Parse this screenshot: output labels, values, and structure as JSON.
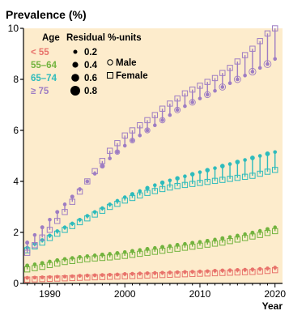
{
  "chart_data": {
    "type": "scatter",
    "title": "Prevalence (%)",
    "xlabel": "Year",
    "ylabel": "",
    "xlim": [
      1986.5,
      2021
    ],
    "ylim": [
      0,
      10
    ],
    "xticks": [
      1990,
      2000,
      2010,
      2020
    ],
    "yticks": [
      0,
      2,
      4,
      6,
      8,
      10
    ],
    "x": [
      1987,
      1988,
      1989,
      1990,
      1991,
      1992,
      1993,
      1994,
      1995,
      1996,
      1997,
      1998,
      1999,
      2000,
      2001,
      2002,
      2003,
      2004,
      2005,
      2006,
      2007,
      2008,
      2009,
      2010,
      2011,
      2012,
      2013,
      2014,
      2015,
      2016,
      2017,
      2018,
      2019,
      2020
    ],
    "grid": false,
    "background_color": "#fdeccc",
    "legend": {
      "position": "top-left",
      "age_title": "Age",
      "residual_title": "Residual %-units",
      "sizes": [
        0.2,
        0.4,
        0.6,
        0.8
      ],
      "male_label": "Male",
      "female_label": "Female"
    },
    "series": [
      {
        "name": "< 55",
        "color": "#e8736b",
        "female": [
          0.15,
          0.16,
          0.17,
          0.18,
          0.19,
          0.2,
          0.21,
          0.22,
          0.23,
          0.24,
          0.25,
          0.26,
          0.27,
          0.28,
          0.29,
          0.3,
          0.31,
          0.32,
          0.33,
          0.34,
          0.35,
          0.36,
          0.37,
          0.38,
          0.39,
          0.4,
          0.41,
          0.42,
          0.43,
          0.44,
          0.45,
          0.47,
          0.49,
          0.52
        ],
        "male": [
          0.22,
          0.23,
          0.24,
          0.25,
          0.26,
          0.27,
          0.28,
          0.3,
          0.31,
          0.32,
          0.33,
          0.34,
          0.35,
          0.37,
          0.38,
          0.39,
          0.4,
          0.41,
          0.42,
          0.43,
          0.44,
          0.45,
          0.46,
          0.47,
          0.48,
          0.5,
          0.51,
          0.52,
          0.53,
          0.54,
          0.55,
          0.57,
          0.59,
          0.62
        ]
      },
      {
        "name": "55–64",
        "color": "#72b33e",
        "female": [
          0.55,
          0.6,
          0.65,
          0.72,
          0.78,
          0.84,
          0.88,
          0.92,
          0.95,
          0.98,
          1.0,
          1.02,
          1.05,
          1.08,
          1.12,
          1.16,
          1.2,
          1.24,
          1.28,
          1.32,
          1.36,
          1.4,
          1.44,
          1.48,
          1.52,
          1.56,
          1.6,
          1.66,
          1.72,
          1.78,
          1.84,
          1.9,
          1.98,
          2.05
        ],
        "male": [
          0.7,
          0.75,
          0.8,
          0.86,
          0.91,
          0.96,
          1.0,
          1.04,
          1.07,
          1.1,
          1.13,
          1.16,
          1.19,
          1.23,
          1.27,
          1.31,
          1.35,
          1.39,
          1.43,
          1.47,
          1.51,
          1.55,
          1.59,
          1.63,
          1.67,
          1.72,
          1.77,
          1.82,
          1.87,
          1.93,
          1.99,
          2.06,
          2.13,
          2.2
        ]
      },
      {
        "name": "65–74",
        "color": "#2dbbbc",
        "female": [
          1.3,
          1.45,
          1.6,
          1.78,
          1.95,
          2.1,
          2.25,
          2.4,
          2.55,
          2.7,
          2.85,
          3.0,
          3.12,
          3.25,
          3.35,
          3.45,
          3.55,
          3.62,
          3.7,
          3.76,
          3.82,
          3.86,
          3.9,
          3.94,
          3.98,
          4.02,
          4.06,
          4.1,
          4.14,
          4.18,
          4.22,
          4.3,
          4.38,
          4.45
        ],
        "male": [
          1.4,
          1.55,
          1.7,
          1.88,
          2.05,
          2.2,
          2.35,
          2.5,
          2.65,
          2.8,
          2.95,
          3.1,
          3.24,
          3.38,
          3.5,
          3.62,
          3.74,
          3.85,
          3.95,
          4.04,
          4.12,
          4.2,
          4.28,
          4.36,
          4.44,
          4.52,
          4.6,
          4.68,
          4.76,
          4.84,
          4.92,
          5.0,
          5.08,
          5.15
        ]
      },
      {
        "name": "≥ 75",
        "color": "#9e7dc3",
        "female": [
          1.2,
          1.5,
          1.8,
          2.1,
          2.45,
          2.8,
          3.2,
          3.6,
          4.0,
          4.4,
          4.8,
          5.2,
          5.5,
          5.8,
          6.0,
          6.2,
          6.4,
          6.6,
          6.85,
          7.05,
          7.25,
          7.45,
          7.6,
          7.75,
          7.9,
          8.05,
          8.25,
          8.45,
          8.7,
          8.95,
          9.2,
          9.5,
          9.8,
          10.0
        ],
        "male": [
          1.6,
          1.9,
          2.2,
          2.5,
          2.8,
          3.1,
          3.4,
          3.7,
          4.0,
          4.3,
          4.6,
          4.9,
          5.15,
          5.4,
          5.6,
          5.8,
          6.0,
          6.2,
          6.4,
          6.6,
          6.8,
          6.95,
          7.1,
          7.25,
          7.4,
          7.55,
          7.7,
          7.85,
          8.0,
          8.15,
          8.3,
          8.45,
          8.6,
          8.8
        ]
      }
    ]
  }
}
